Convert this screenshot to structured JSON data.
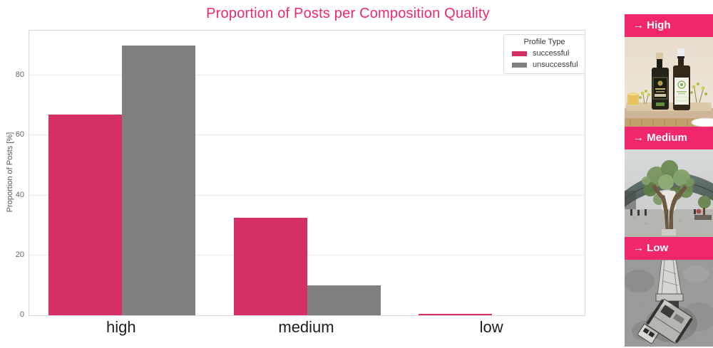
{
  "chart_data": {
    "type": "bar",
    "title": "Proportion of Posts per Composition Quality",
    "categories": [
      "high",
      "medium",
      "low"
    ],
    "series": [
      {
        "name": "successful",
        "color": "#d62f63",
        "values": [
          67,
          32.5,
          0.5
        ]
      },
      {
        "name": "unsuccessful",
        "color": "#7f7f7f",
        "values": [
          90,
          10,
          0
        ]
      }
    ],
    "xlabel": "",
    "ylabel": "Proportion of Posts [%]",
    "ylim": [
      0,
      95
    ],
    "yticks": [
      0,
      20,
      40,
      60,
      80
    ],
    "grid": "horizontal",
    "legend": {
      "title": "Profile Type",
      "position": "upper right"
    }
  },
  "side_panel": {
    "cards": [
      {
        "label": "→ High",
        "photo": "olive-oil-bottles-photo"
      },
      {
        "label": "→ Medium",
        "photo": "olive-tree-outdoor-photo"
      },
      {
        "label": "→ Low",
        "photo": "machinery-aerial-grayscale-photo"
      }
    ]
  },
  "colors": {
    "accent_pink": "#f0276c",
    "bar_pink": "#d62f63",
    "bar_gray": "#7f7f7f",
    "grid": "#ebebeb",
    "spine": "#d9d9d9"
  }
}
